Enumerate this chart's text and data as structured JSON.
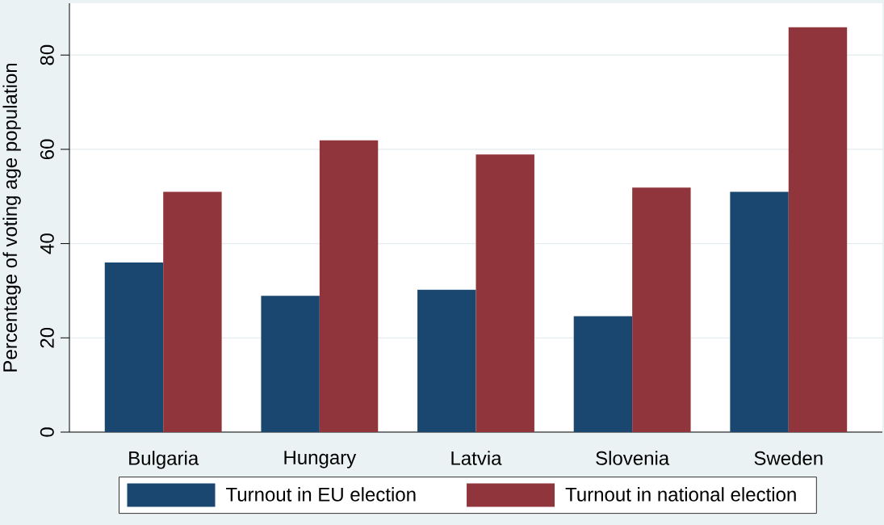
{
  "chart_data": {
    "type": "bar",
    "ylabel": "Percentage of voting age population",
    "categories": [
      "Bulgaria",
      "Hungary",
      "Latvia",
      "Slovenia",
      "Sweden"
    ],
    "series": [
      {
        "name": "Turnout in EU election",
        "color": "#1a476f",
        "values": [
          36.0,
          28.9,
          30.2,
          24.6,
          51.0
        ]
      },
      {
        "name": "Turnout in national election",
        "color": "#90353b",
        "values": [
          51.0,
          61.9,
          58.9,
          51.9,
          85.9
        ]
      }
    ],
    "ylim": [
      0,
      91
    ],
    "yticks": [
      0,
      20,
      40,
      60,
      80
    ],
    "grid": "y",
    "legend": "bottom"
  }
}
